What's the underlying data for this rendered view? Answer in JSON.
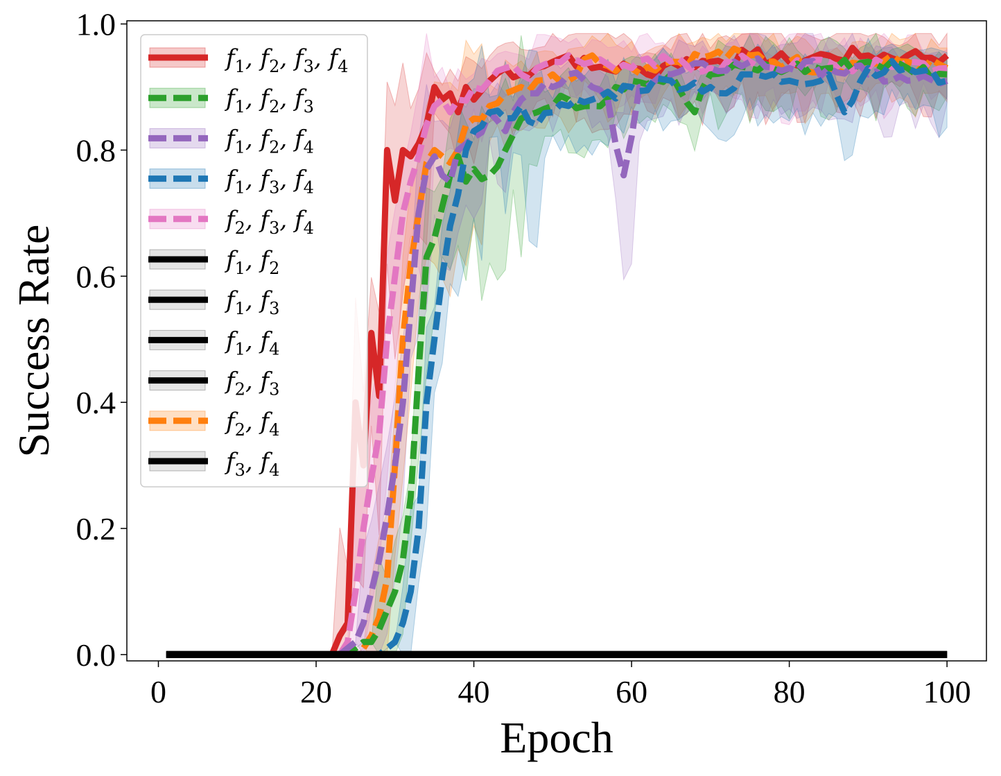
{
  "chart_data": {
    "type": "line",
    "xlabel": "Epoch",
    "ylabel": "Success Rate",
    "xlim": [
      -4,
      105
    ],
    "ylim": [
      -0.01,
      1.005
    ],
    "xticks": [
      "0",
      "20",
      "40",
      "60",
      "80",
      "100"
    ],
    "xtick_values": [
      0,
      20,
      40,
      60,
      80,
      100
    ],
    "yticks": [
      "0.0",
      "0.2",
      "0.4",
      "0.6",
      "0.8",
      "1.0"
    ],
    "ytick_values": [
      0.0,
      0.2,
      0.4,
      0.6,
      0.8,
      1.0
    ],
    "legend_location": "upper-left",
    "grid": false,
    "series": [
      {
        "name": "f1,f2,f3,f4",
        "label_parts": [
          [
            "f",
            "1"
          ],
          [
            "f",
            "2"
          ],
          [
            "f",
            "3"
          ],
          [
            "f",
            "4"
          ]
        ],
        "color": "#d62728",
        "dashed": false,
        "points": [
          [
            1,
            0
          ],
          [
            22,
            0
          ],
          [
            23,
            0.03
          ],
          [
            24,
            0.05
          ],
          [
            25,
            0.4
          ],
          [
            26,
            0.3
          ],
          [
            27,
            0.51
          ],
          [
            28,
            0.41
          ],
          [
            29,
            0.8
          ],
          [
            30,
            0.72
          ],
          [
            31,
            0.8
          ],
          [
            32,
            0.79
          ],
          [
            33,
            0.81
          ],
          [
            34,
            0.84
          ],
          [
            35,
            0.9
          ],
          [
            36,
            0.88
          ],
          [
            37,
            0.89
          ],
          [
            38,
            0.86
          ],
          [
            39,
            0.9
          ],
          [
            40,
            0.88
          ],
          [
            42,
            0.91
          ],
          [
            44,
            0.93
          ],
          [
            46,
            0.92
          ],
          [
            48,
            0.93
          ],
          [
            50,
            0.94
          ],
          [
            52,
            0.95
          ],
          [
            55,
            0.93
          ],
          [
            60,
            0.93
          ],
          [
            62,
            0.92
          ],
          [
            65,
            0.94
          ],
          [
            70,
            0.94
          ],
          [
            75,
            0.95
          ],
          [
            80,
            0.94
          ],
          [
            85,
            0.95
          ],
          [
            90,
            0.95
          ],
          [
            95,
            0.95
          ],
          [
            100,
            0.95
          ]
        ],
        "band": [
          0.07,
          0.2
        ]
      },
      {
        "name": "f1,f2,f3",
        "label_parts": [
          [
            "f",
            "1"
          ],
          [
            "f",
            "2"
          ],
          [
            "f",
            "3"
          ]
        ],
        "color": "#2ca02c",
        "dashed": true,
        "points": [
          [
            1,
            0
          ],
          [
            24,
            0
          ],
          [
            25,
            0.01
          ],
          [
            26,
            0.02
          ],
          [
            27,
            0.02
          ],
          [
            28,
            0.04
          ],
          [
            29,
            0.07
          ],
          [
            30,
            0.1
          ],
          [
            31,
            0.15
          ],
          [
            32,
            0.25
          ],
          [
            33,
            0.45
          ],
          [
            34,
            0.63
          ],
          [
            35,
            0.66
          ],
          [
            36,
            0.71
          ],
          [
            37,
            0.76
          ],
          [
            38,
            0.79
          ],
          [
            39,
            0.75
          ],
          [
            40,
            0.77
          ],
          [
            42,
            0.76
          ],
          [
            44,
            0.8
          ],
          [
            46,
            0.85
          ],
          [
            48,
            0.86
          ],
          [
            50,
            0.87
          ],
          [
            52,
            0.88
          ],
          [
            55,
            0.87
          ],
          [
            58,
            0.9
          ],
          [
            60,
            0.91
          ],
          [
            65,
            0.92
          ],
          [
            68,
            0.86
          ],
          [
            70,
            0.92
          ],
          [
            75,
            0.93
          ],
          [
            80,
            0.93
          ],
          [
            85,
            0.93
          ],
          [
            90,
            0.94
          ],
          [
            95,
            0.93
          ],
          [
            100,
            0.92
          ]
        ],
        "band": [
          0.06,
          0.15
        ]
      },
      {
        "name": "f1,f2,f4",
        "label_parts": [
          [
            "f",
            "1"
          ],
          [
            "f",
            "2"
          ],
          [
            "f",
            "4"
          ]
        ],
        "color": "#9467bd",
        "dashed": true,
        "points": [
          [
            1,
            0
          ],
          [
            23,
            0
          ],
          [
            24,
            0.01
          ],
          [
            25,
            0.02
          ],
          [
            26,
            0.05
          ],
          [
            27,
            0.1
          ],
          [
            28,
            0.15
          ],
          [
            29,
            0.22
          ],
          [
            30,
            0.3
          ],
          [
            31,
            0.4
          ],
          [
            32,
            0.55
          ],
          [
            33,
            0.7
          ],
          [
            34,
            0.77
          ],
          [
            35,
            0.79
          ],
          [
            36,
            0.76
          ],
          [
            37,
            0.75
          ],
          [
            38,
            0.8
          ],
          [
            40,
            0.82
          ],
          [
            42,
            0.86
          ],
          [
            44,
            0.83
          ],
          [
            46,
            0.88
          ],
          [
            48,
            0.89
          ],
          [
            50,
            0.9
          ],
          [
            52,
            0.92
          ],
          [
            55,
            0.9
          ],
          [
            57,
            0.88
          ],
          [
            59,
            0.76
          ],
          [
            61,
            0.9
          ],
          [
            65,
            0.92
          ],
          [
            70,
            0.93
          ],
          [
            75,
            0.94
          ],
          [
            80,
            0.93
          ],
          [
            85,
            0.93
          ],
          [
            90,
            0.92
          ],
          [
            95,
            0.91
          ],
          [
            100,
            0.91
          ]
        ],
        "band": [
          0.06,
          0.15
        ]
      },
      {
        "name": "f1,f3,f4",
        "label_parts": [
          [
            "f",
            "1"
          ],
          [
            "f",
            "3"
          ],
          [
            "f",
            "4"
          ]
        ],
        "color": "#1f77b4",
        "dashed": true,
        "points": [
          [
            1,
            0
          ],
          [
            28,
            0
          ],
          [
            29,
            0.01
          ],
          [
            30,
            0.02
          ],
          [
            31,
            0.05
          ],
          [
            32,
            0.1
          ],
          [
            33,
            0.2
          ],
          [
            34,
            0.4
          ],
          [
            35,
            0.5
          ],
          [
            36,
            0.6
          ],
          [
            37,
            0.68
          ],
          [
            38,
            0.73
          ],
          [
            39,
            0.8
          ],
          [
            40,
            0.83
          ],
          [
            42,
            0.86
          ],
          [
            44,
            0.85
          ],
          [
            46,
            0.87
          ],
          [
            48,
            0.84
          ],
          [
            50,
            0.86
          ],
          [
            52,
            0.87
          ],
          [
            55,
            0.88
          ],
          [
            60,
            0.9
          ],
          [
            65,
            0.91
          ],
          [
            70,
            0.9
          ],
          [
            72,
            0.89
          ],
          [
            75,
            0.92
          ],
          [
            80,
            0.91
          ],
          [
            85,
            0.92
          ],
          [
            87,
            0.86
          ],
          [
            90,
            0.93
          ],
          [
            95,
            0.93
          ],
          [
            100,
            0.91
          ]
        ],
        "band": [
          0.06,
          0.15
        ]
      },
      {
        "name": "f2,f3,f4",
        "label_parts": [
          [
            "f",
            "2"
          ],
          [
            "f",
            "3"
          ],
          [
            "f",
            "4"
          ]
        ],
        "color": "#e377c2",
        "dashed": true,
        "points": [
          [
            1,
            0
          ],
          [
            23,
            0
          ],
          [
            24,
            0.02
          ],
          [
            25,
            0.1
          ],
          [
            26,
            0.2
          ],
          [
            27,
            0.28
          ],
          [
            28,
            0.35
          ],
          [
            29,
            0.5
          ],
          [
            30,
            0.6
          ],
          [
            31,
            0.7
          ],
          [
            32,
            0.75
          ],
          [
            33,
            0.79
          ],
          [
            34,
            0.84
          ],
          [
            35,
            0.87
          ],
          [
            36,
            0.88
          ],
          [
            37,
            0.86
          ],
          [
            38,
            0.88
          ],
          [
            40,
            0.9
          ],
          [
            42,
            0.91
          ],
          [
            44,
            0.93
          ],
          [
            46,
            0.92
          ],
          [
            48,
            0.93
          ],
          [
            50,
            0.94
          ],
          [
            52,
            0.95
          ],
          [
            55,
            0.94
          ],
          [
            60,
            0.93
          ],
          [
            65,
            0.94
          ],
          [
            70,
            0.93
          ],
          [
            75,
            0.94
          ],
          [
            80,
            0.93
          ],
          [
            85,
            0.94
          ],
          [
            90,
            0.93
          ],
          [
            95,
            0.94
          ],
          [
            100,
            0.93
          ]
        ],
        "band": [
          0.06,
          0.2
        ]
      },
      {
        "name": "f1,f2",
        "label_parts": [
          [
            "f",
            "1"
          ],
          [
            "f",
            "2"
          ]
        ],
        "color": "#000000",
        "dashed": false,
        "points": [
          [
            1,
            0
          ],
          [
            100,
            0
          ]
        ],
        "band": [
          0,
          0
        ]
      },
      {
        "name": "f1,f3",
        "label_parts": [
          [
            "f",
            "1"
          ],
          [
            "f",
            "3"
          ]
        ],
        "color": "#000000",
        "dashed": false,
        "points": [
          [
            1,
            0
          ],
          [
            100,
            0
          ]
        ],
        "band": [
          0,
          0
        ]
      },
      {
        "name": "f1,f4",
        "label_parts": [
          [
            "f",
            "1"
          ],
          [
            "f",
            "4"
          ]
        ],
        "color": "#000000",
        "dashed": false,
        "points": [
          [
            1,
            0
          ],
          [
            100,
            0
          ]
        ],
        "band": [
          0,
          0
        ]
      },
      {
        "name": "f2,f3",
        "label_parts": [
          [
            "f",
            "2"
          ],
          [
            "f",
            "3"
          ]
        ],
        "color": "#000000",
        "dashed": false,
        "points": [
          [
            1,
            0
          ],
          [
            100,
            0
          ]
        ],
        "band": [
          0,
          0
        ]
      },
      {
        "name": "f2,f4",
        "label_parts": [
          [
            "f",
            "2"
          ],
          [
            "f",
            "4"
          ]
        ],
        "color": "#ff7f0e",
        "dashed": true,
        "points": [
          [
            1,
            0
          ],
          [
            25,
            0
          ],
          [
            26,
            0.01
          ],
          [
            27,
            0.03
          ],
          [
            28,
            0.06
          ],
          [
            29,
            0.12
          ],
          [
            30,
            0.3
          ],
          [
            31,
            0.5
          ],
          [
            32,
            0.62
          ],
          [
            33,
            0.7
          ],
          [
            34,
            0.78
          ],
          [
            35,
            0.8
          ],
          [
            36,
            0.79
          ],
          [
            37,
            0.78
          ],
          [
            38,
            0.8
          ],
          [
            39,
            0.84
          ],
          [
            40,
            0.85
          ],
          [
            42,
            0.87
          ],
          [
            44,
            0.89
          ],
          [
            46,
            0.9
          ],
          [
            48,
            0.91
          ],
          [
            50,
            0.92
          ],
          [
            52,
            0.91
          ],
          [
            55,
            0.95
          ],
          [
            60,
            0.93
          ],
          [
            65,
            0.94
          ],
          [
            70,
            0.95
          ],
          [
            75,
            0.95
          ],
          [
            80,
            0.94
          ],
          [
            85,
            0.93
          ],
          [
            90,
            0.94
          ],
          [
            95,
            0.94
          ],
          [
            100,
            0.93
          ]
        ],
        "band": [
          0.06,
          0.15
        ]
      },
      {
        "name": "f3,f4",
        "label_parts": [
          [
            "f",
            "3"
          ],
          [
            "f",
            "4"
          ]
        ],
        "color": "#000000",
        "dashed": false,
        "points": [
          [
            1,
            0
          ],
          [
            100,
            0
          ]
        ],
        "band": [
          0,
          0
        ]
      }
    ]
  }
}
